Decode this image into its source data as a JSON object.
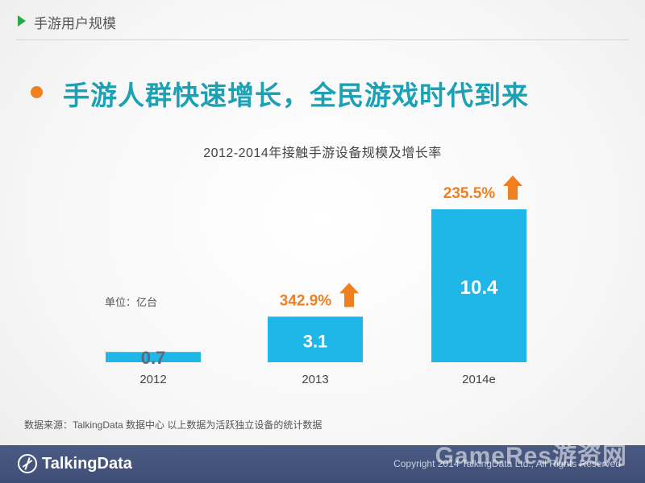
{
  "header": {
    "section_title": "手游用户规模"
  },
  "headline": "手游人群快速增长，全民游戏时代到来",
  "colors": {
    "bar": "#1fb6e8",
    "growth": "#f07f1e",
    "accent_green": "#2aa84a",
    "headline": "#1ba0b4",
    "footer": "#44547b"
  },
  "chart_data": {
    "type": "bar",
    "title": "2012-2014年接触手游设备规模及增长率",
    "unit_label": "单位：亿台",
    "categories": [
      "2012",
      "2013",
      "2014e"
    ],
    "values": [
      0.7,
      3.1,
      10.4
    ],
    "value_labels": [
      "0.7",
      "3.1",
      "10.4"
    ],
    "growth_labels": [
      "",
      "342.9%",
      "235.5%"
    ],
    "ylim": [
      0,
      11.5
    ],
    "grid": false
  },
  "footnote": "数据来源：TalkingData 数据中心 以上数据为活跃独立设备的统计数据",
  "footer": {
    "logo_text": "TalkingData",
    "copyright": "Copyright 2014 TalkingData Ltd., All Rights Reserved",
    "watermark": "GameRes游资网"
  }
}
